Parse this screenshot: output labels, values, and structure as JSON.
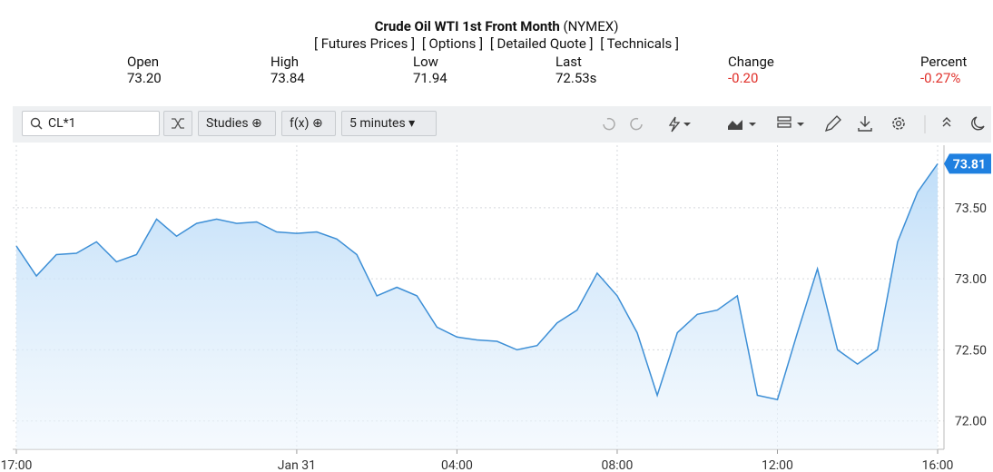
{
  "header": {
    "title": "Crude Oil WTI 1st Front Month",
    "exchange": "(NYMEX)",
    "links": [
      "[ Futures Prices ]",
      "[ Options ]",
      "[ Detailed Quote ]",
      "[ Technicals ]"
    ]
  },
  "quote": [
    {
      "label": "Open",
      "value": "73.20"
    },
    {
      "label": "High",
      "value": "73.84"
    },
    {
      "label": "Low",
      "value": "71.94"
    },
    {
      "label": "Last",
      "value": "72.53s"
    },
    {
      "label": "Change",
      "value": "-0.20"
    },
    {
      "label": "Percent",
      "value": "-0.27%"
    }
  ],
  "toolbar": {
    "symbol": "CL*1",
    "studies": "Studies",
    "fx": "f(x)",
    "interval": "5 minutes"
  },
  "chart_data": {
    "type": "area",
    "categories": [
      "17:00",
      null,
      null,
      null,
      null,
      null,
      null,
      null,
      null,
      null,
      null,
      null,
      null,
      null,
      "Jan 31",
      null,
      null,
      null,
      null,
      null,
      null,
      null,
      "04:00",
      null,
      null,
      null,
      null,
      null,
      null,
      null,
      "08:00",
      null,
      null,
      null,
      null,
      null,
      null,
      null,
      "12:00",
      null,
      null,
      null,
      null,
      null,
      null,
      null,
      "16:00"
    ],
    "values": [
      73.23,
      73.02,
      73.17,
      73.18,
      73.26,
      73.12,
      73.17,
      73.42,
      73.3,
      73.39,
      73.42,
      73.39,
      73.4,
      73.33,
      73.32,
      73.33,
      73.28,
      73.17,
      72.88,
      72.94,
      72.88,
      72.66,
      72.59,
      72.57,
      72.56,
      72.5,
      72.53,
      72.69,
      72.78,
      73.04,
      72.88,
      72.62,
      72.18,
      72.62,
      72.75,
      72.78,
      72.88,
      72.18,
      72.15,
      72.62,
      73.07,
      72.5,
      72.4,
      72.5,
      73.26,
      73.61,
      73.81
    ],
    "value_labels": [
      null,
      null,
      null,
      null,
      null,
      null,
      null,
      null,
      null,
      null,
      null,
      null,
      null,
      null,
      null,
      null,
      null,
      null,
      null,
      null,
      null,
      null,
      null,
      null,
      null,
      null,
      null,
      null,
      null,
      null,
      null,
      null,
      null,
      null,
      null,
      null,
      null,
      null,
      null,
      null,
      null,
      null,
      null,
      null,
      null,
      null,
      "73.81"
    ],
    "color": "#3d8fd6",
    "ylim": [
      71.8,
      73.94
    ],
    "yticks": [
      {
        "value": 72.0,
        "label": "72.00"
      },
      {
        "value": 72.5,
        "label": "72.50"
      },
      {
        "value": 73.0,
        "label": "73.00"
      },
      {
        "value": 73.5,
        "label": "73.50"
      }
    ],
    "grid": true
  }
}
